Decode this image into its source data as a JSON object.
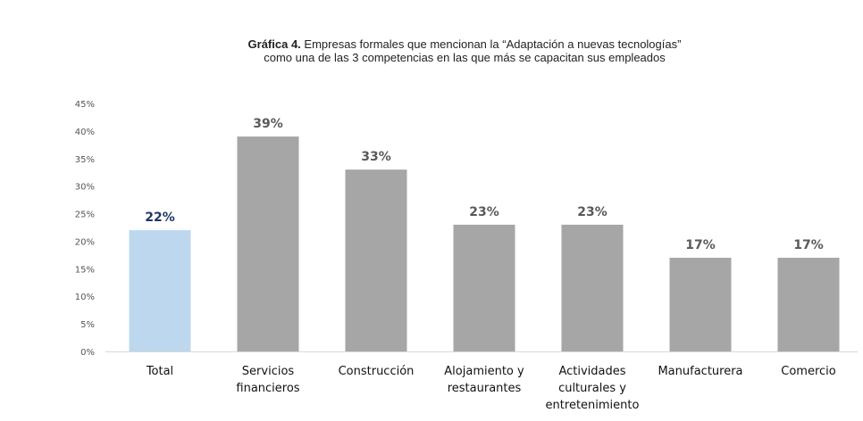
{
  "title": {
    "prefix": "Gráfica 4.",
    "line1": "Empresas formales que mencionan la “Adaptación a nuevas tecnologías”",
    "line2": "como una de las 3 competencias en las que más se capacitan sus empleados"
  },
  "chart_data": {
    "type": "bar",
    "categories": [
      [
        "Total"
      ],
      [
        "Servicios",
        "financieros"
      ],
      [
        "Construcción"
      ],
      [
        "Alojamiento y",
        "restaurantes"
      ],
      [
        "Actividades",
        "culturales y",
        "entretenimiento"
      ],
      [
        "Manufacturera"
      ],
      [
        "Comercio"
      ]
    ],
    "values": [
      22,
      39,
      33,
      23,
      23,
      17,
      17
    ],
    "value_labels": [
      "22%",
      "39%",
      "33%",
      "23%",
      "23%",
      "17%",
      "17%"
    ],
    "yticks": [
      "0%",
      "5%",
      "10%",
      "15%",
      "20%",
      "25%",
      "30%",
      "35%",
      "40%",
      "45%"
    ],
    "ylim": [
      0,
      45
    ],
    "grid": false,
    "colors": {
      "highlight": "#bdd7ee",
      "default": "#a6a6a6",
      "highlight_label": "#1f3864",
      "label": "#595959"
    },
    "highlight_index": 0
  }
}
